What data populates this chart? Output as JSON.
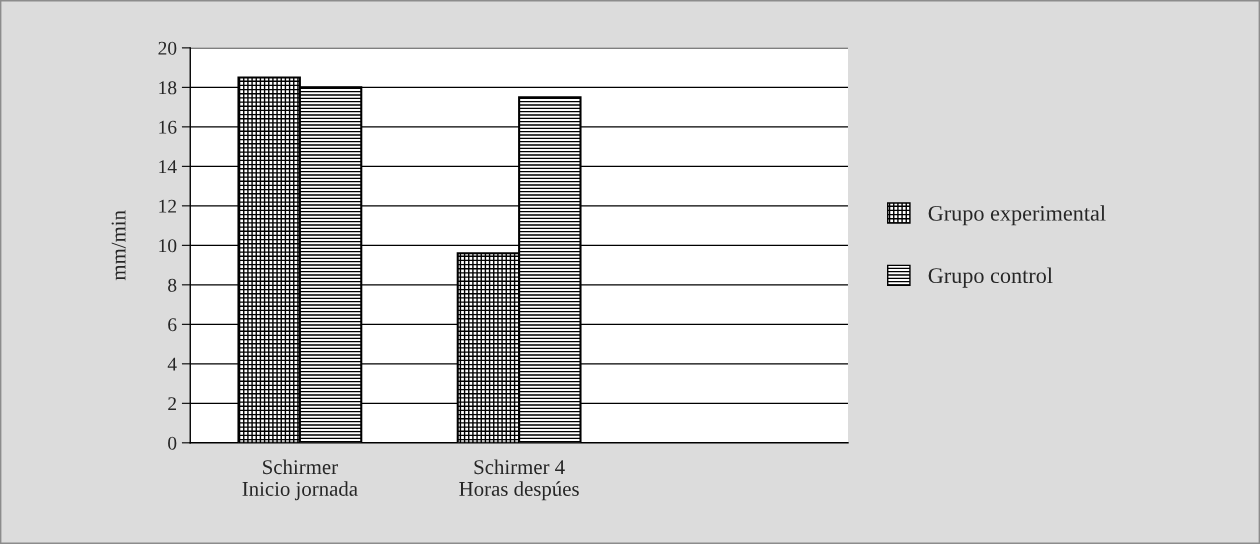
{
  "chart_data": {
    "type": "bar",
    "ylabel": "mm/min",
    "categories": [
      "Schirmer\nInicio jornada",
      "Schirmer 4\nHoras despúes",
      null
    ],
    "series": [
      {
        "name": "Grupo experimental",
        "color": "#000000",
        "values": [
          18.5,
          9.6,
          null
        ]
      },
      {
        "name": "Grupo control",
        "color": "#000000",
        "values": [
          18,
          17.5,
          null
        ]
      }
    ],
    "ylim": [
      0,
      20
    ],
    "yticks": [
      0,
      2,
      4,
      6,
      8,
      10,
      12,
      14,
      16,
      18,
      20
    ],
    "grid": "y",
    "legend": "right"
  }
}
